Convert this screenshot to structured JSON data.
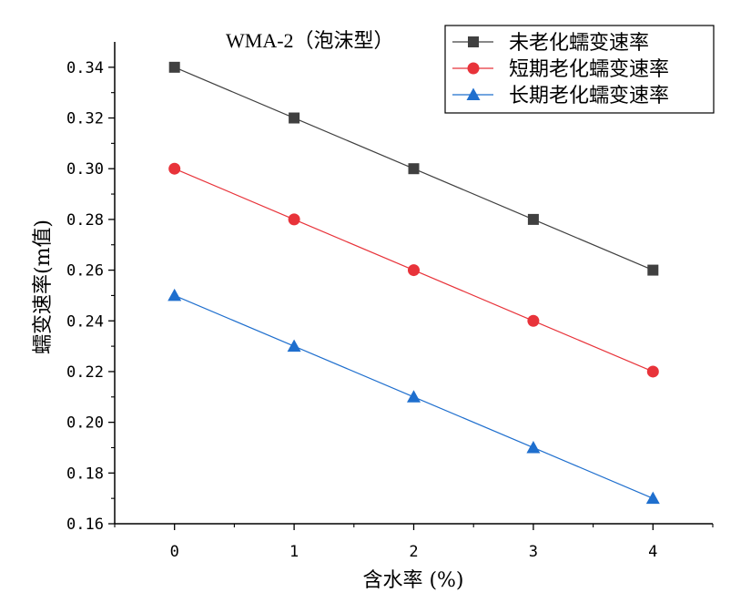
{
  "chart_data": {
    "type": "line",
    "title": "WMA-2（泡沫型）",
    "xlabel": "含水率 (%)",
    "ylabel": "蠕变速率(m值)",
    "x": [
      0,
      1,
      2,
      3,
      4
    ],
    "xlim": [
      -0.5,
      4.5
    ],
    "ylim": [
      0.16,
      0.35
    ],
    "xticks": [
      "0",
      "1",
      "2",
      "3",
      "4"
    ],
    "yticks": [
      "0.16",
      "0.18",
      "0.20",
      "0.22",
      "0.24",
      "0.26",
      "0.28",
      "0.30",
      "0.32",
      "0.34"
    ],
    "grid": false,
    "legend_position": "top-right",
    "series": [
      {
        "name": "未老化蠕变速率",
        "values": [
          0.34,
          0.32,
          0.3,
          0.28,
          0.26
        ],
        "color": "#404040",
        "marker": "square"
      },
      {
        "name": "短期老化蠕变速率",
        "values": [
          0.3,
          0.28,
          0.26,
          0.24,
          0.22
        ],
        "color": "#e8333a",
        "marker": "circle"
      },
      {
        "name": "长期老化蠕变速率",
        "values": [
          0.25,
          0.23,
          0.21,
          0.19,
          0.17
        ],
        "color": "#1f6fce",
        "marker": "triangle"
      }
    ]
  }
}
